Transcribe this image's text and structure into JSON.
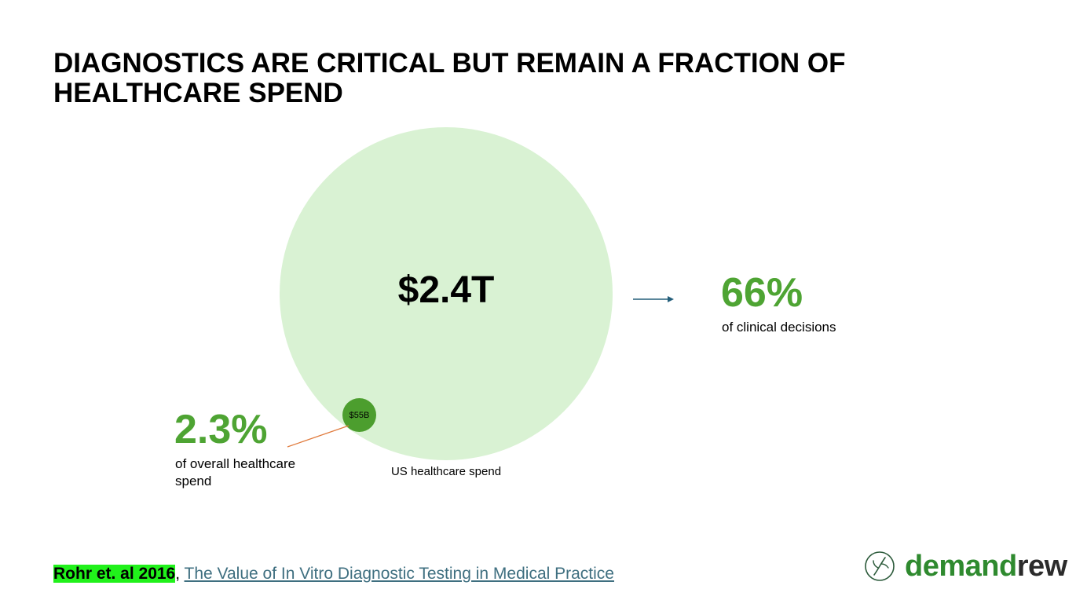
{
  "title": {
    "line1": "DIAGNOSTICS ARE CRITICAL BUT REMAIN A FRACTION OF",
    "line2": "HEALTHCARE SPEND"
  },
  "big_circle": {
    "value": "$2.4T",
    "label": "US healthcare spend",
    "color": "#d9f2d3"
  },
  "small_circle": {
    "value": "$55B",
    "color": "#4c9e2e"
  },
  "stat_right": {
    "value": "66%",
    "description": "of clinical decisions",
    "color": "#4ea433"
  },
  "stat_left": {
    "value": "2.3%",
    "description": "of overall healthcare spend",
    "color": "#4ea433"
  },
  "arrow_color": "#235e7a",
  "connector_color": "#e07a3c",
  "citation": {
    "author": "Rohr et. al 2016",
    "separator": ", ",
    "link_text": "The Value of In Vitro Diagnostic Testing in Medical Practice"
  },
  "logo": {
    "part1": "demand",
    "part2": "rew",
    "icon": "sprout-circle-icon"
  }
}
